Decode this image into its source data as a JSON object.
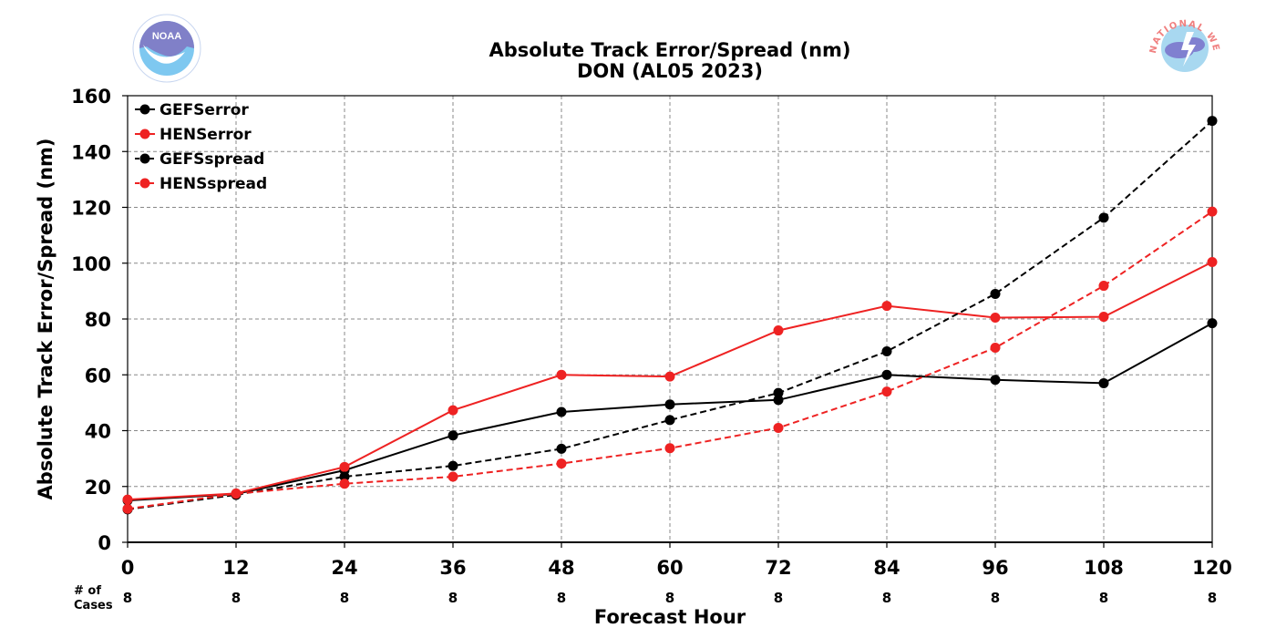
{
  "logos": {
    "left": {
      "text": "NOAA",
      "color": "#7ec8f0"
    },
    "right": {
      "text": "NATIONAL WEATHER SERVICE",
      "color": "#f08080"
    }
  },
  "chart_data": {
    "type": "line",
    "title": "Absolute Track Error/Spread (nm)",
    "subtitle": "DON (AL05 2023)",
    "xlabel": "Forecast Hour",
    "ylabel": "Absolute Track Error/Spread (nm)",
    "x": [
      0,
      12,
      24,
      36,
      48,
      60,
      72,
      84,
      96,
      108,
      120
    ],
    "x_tick_labels": [
      "0",
      "12",
      "24",
      "36",
      "48",
      "60",
      "72",
      "84",
      "96",
      "108",
      "120"
    ],
    "xlim": [
      0,
      120
    ],
    "ylim": [
      0,
      160
    ],
    "y_ticks": [
      0,
      20,
      40,
      60,
      80,
      100,
      120,
      140,
      160
    ],
    "grid": true,
    "legend_position": "top-left",
    "cases_label": "# of\nCases",
    "cases": [
      "8",
      "8",
      "8",
      "8",
      "8",
      "8",
      "8",
      "8",
      "8",
      "8",
      "8"
    ],
    "series": [
      {
        "name": "GEFSerror",
        "color": "#000000",
        "dashed": false,
        "values": [
          15.0,
          17.3,
          25.8,
          38.3,
          46.7,
          49.4,
          51.0,
          60.0,
          58.2,
          57.0,
          78.5
        ]
      },
      {
        "name": "HENSerror",
        "color": "#ee2222",
        "dashed": false,
        "values": [
          15.3,
          17.5,
          27.0,
          47.3,
          60.0,
          59.4,
          75.9,
          84.7,
          80.5,
          80.8,
          100.4
        ]
      },
      {
        "name": "GEFSspread",
        "color": "#000000",
        "dashed": true,
        "values": [
          11.8,
          17.0,
          23.5,
          27.4,
          33.5,
          43.8,
          53.5,
          68.4,
          89.0,
          116.3,
          151.0
        ]
      },
      {
        "name": "HENSspread",
        "color": "#ee2222",
        "dashed": true,
        "values": [
          12.0,
          17.4,
          21.0,
          23.5,
          28.2,
          33.7,
          41.0,
          54.0,
          69.7,
          91.9,
          118.5
        ]
      }
    ]
  }
}
